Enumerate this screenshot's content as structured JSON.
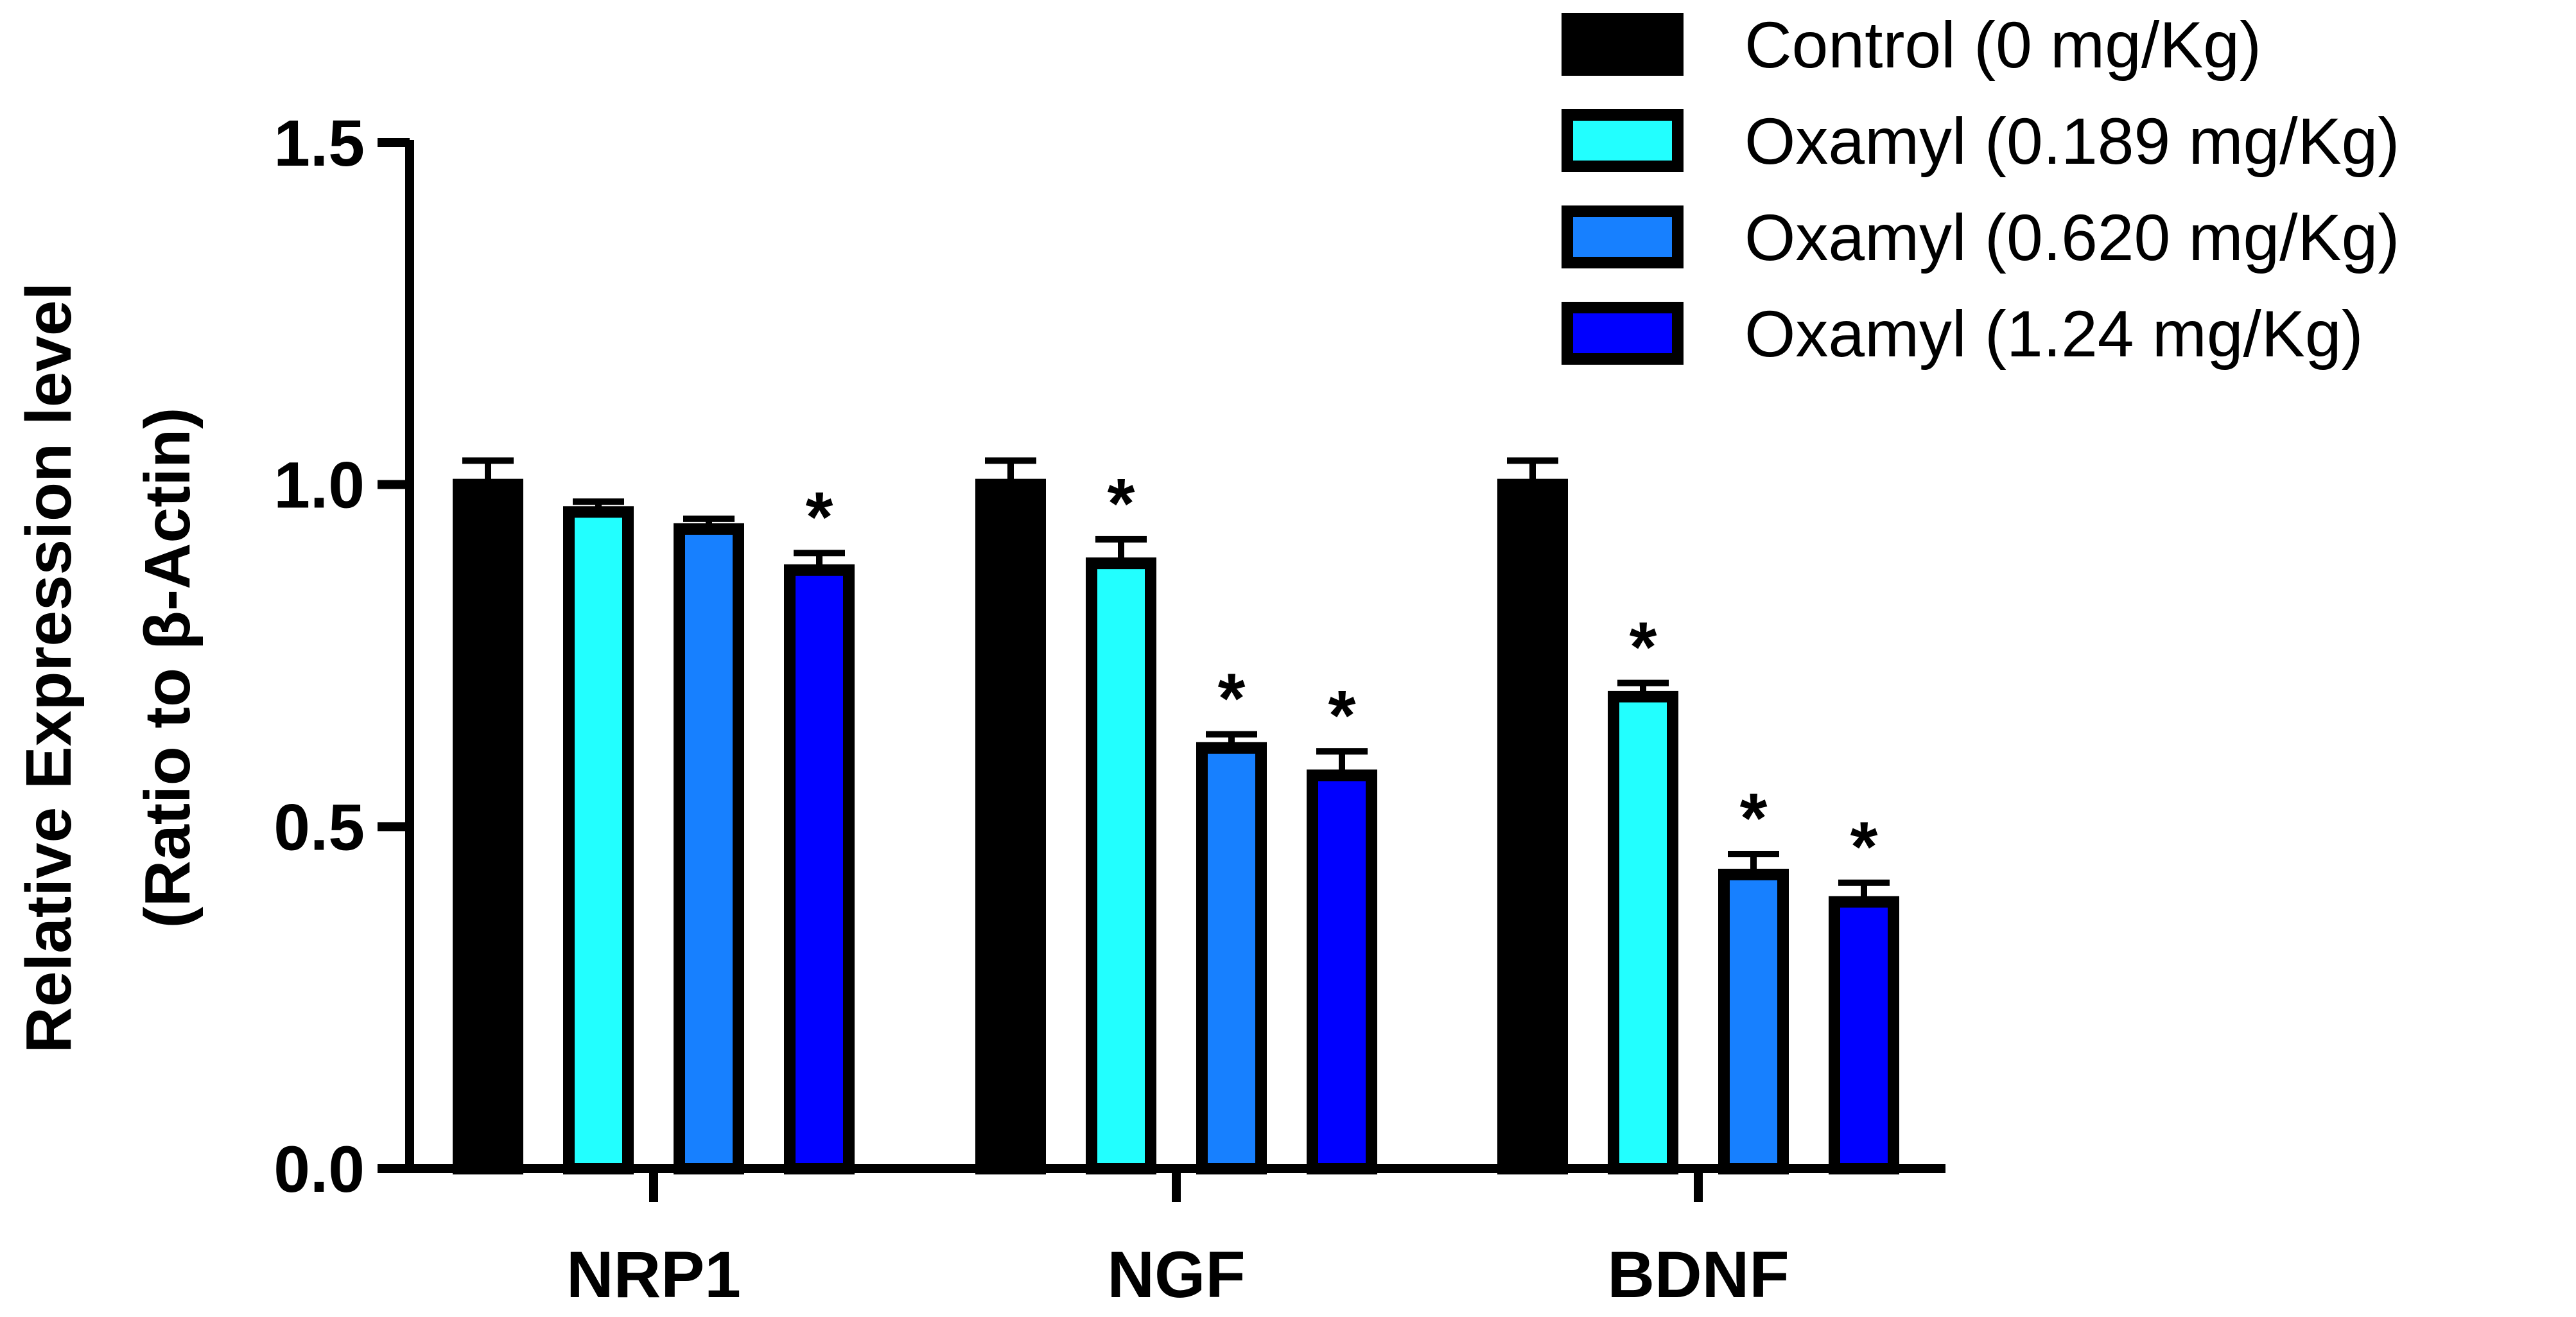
{
  "chart_data": {
    "type": "bar",
    "title": "",
    "xlabel": "",
    "ylabel_line1": "Relative Expression level",
    "ylabel_line2": "(Ratio to β-Actin)",
    "ylim": [
      0,
      1.5
    ],
    "yticks": [
      "0.0",
      "0.5",
      "1.0",
      "1.5"
    ],
    "categories": [
      "NRP1",
      "NGF",
      "BDNF"
    ],
    "series": [
      {
        "name": "Control (0 mg/Kg)",
        "color": "#000000",
        "values": [
          1.0,
          1.0,
          1.0
        ],
        "errors": [
          0.035,
          0.035,
          0.035
        ],
        "significant": [
          false,
          false,
          false
        ]
      },
      {
        "name": "Oxamyl (0.189 mg/Kg)",
        "color": "#22FFFF",
        "values": [
          0.96,
          0.885,
          0.69
        ],
        "errors": [
          0.015,
          0.035,
          0.02
        ],
        "significant": [
          false,
          true,
          true
        ]
      },
      {
        "name": "Oxamyl (0.620 mg/Kg)",
        "color": "#1780FF",
        "values": [
          0.935,
          0.615,
          0.43
        ],
        "errors": [
          0.015,
          0.02,
          0.03
        ],
        "significant": [
          false,
          true,
          true
        ]
      },
      {
        "name": "Oxamyl (1.24 mg/Kg)",
        "color": "#0000FF",
        "values": [
          0.875,
          0.575,
          0.39
        ],
        "errors": [
          0.025,
          0.035,
          0.028
        ],
        "significant": [
          true,
          true,
          true
        ]
      }
    ],
    "significance_marker": "*",
    "legend_position": "top-right",
    "grid": false
  }
}
